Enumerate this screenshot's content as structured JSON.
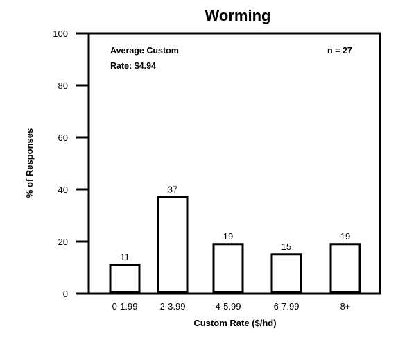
{
  "chart_data": {
    "type": "bar",
    "title": "Worming",
    "xlabel": "Custom Rate ($/hd)",
    "ylabel": "% of Responses",
    "categories": [
      "0-1.99",
      "2-3.99",
      "4-5.99",
      "6-7.99",
      "8+"
    ],
    "values": [
      11,
      37,
      19,
      15,
      19
    ],
    "data_labels": [
      "11",
      "37",
      "19",
      "15",
      "19"
    ],
    "ylim": [
      0,
      100
    ],
    "yticks": [
      0,
      20,
      40,
      60,
      80,
      100
    ],
    "ytick_labels": [
      "0",
      "20",
      "40",
      "60",
      "80",
      "100"
    ],
    "grid": false,
    "legend": "none",
    "annotations": {
      "average_line1": "Average Custom",
      "average_line2": "Rate: $4.94",
      "n": "n = 27"
    },
    "colors": {
      "bar_fill": "#ffffff",
      "bar_stroke": "#000000"
    }
  }
}
